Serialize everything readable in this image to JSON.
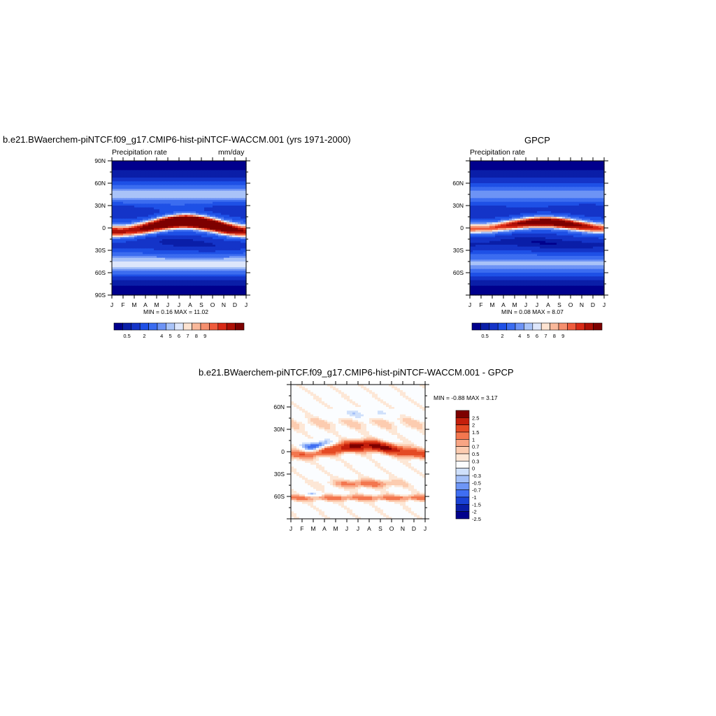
{
  "colors": {
    "precip_scale": [
      "#00008c",
      "#0a1ea8",
      "#1434c8",
      "#1e50e6",
      "#3b6cf0",
      "#6d93f5",
      "#a9c3f8",
      "#dde6fb",
      "#fde3d1",
      "#f9b89a",
      "#f58f6e",
      "#ef5b3c",
      "#d92a16",
      "#ae1006",
      "#7d0000"
    ],
    "diff_scale": [
      "#00008c",
      "#0a1ea8",
      "#1a42d6",
      "#3f6ef2",
      "#6e96f6",
      "#a4c0f8",
      "#cfe0fb",
      "#fbfdff",
      "#fde7d6",
      "#fcccb0",
      "#f8a584",
      "#f3774f",
      "#e44a24",
      "#c41f0c",
      "#7d0000"
    ]
  },
  "charts": {
    "model": {
      "title": "b.e21.BWaerchem-piNTCF.f09_g17.CMIP6-hist-piNTCF-WACCM.001 (yrs 1971-2000)",
      "left_label": "Precipitation rate",
      "right_label": "mm/day",
      "minmax": "MIN =   0.16 MAX =  11.02"
    },
    "obs": {
      "title": "GPCP",
      "left_label": "Precipitation rate",
      "minmax": "MIN =   0.08 MAX =   8.07"
    },
    "diff": {
      "title": "b.e21.BWaerchem-piNTCF.f09_g17.CMIP6-hist-piNTCF-WACCM.001 - GPCP",
      "minmax": "MIN =  -0.88 MAX =   3.17"
    }
  },
  "chart_data": [
    {
      "type": "heatmap",
      "title": "b.e21.BWaerchem-piNTCF.f09_g17.CMIP6-hist-piNTCF-WACCM.001 (yrs 1971-2000)",
      "ylabel": "Precipitation rate",
      "units": "mm/day",
      "x_ticks": [
        "J",
        "F",
        "M",
        "A",
        "M",
        "J",
        "J",
        "A",
        "S",
        "O",
        "N",
        "D",
        "J"
      ],
      "y_ticks": [
        "90N",
        "60N",
        "30N",
        "0",
        "30S",
        "60S",
        "90S"
      ],
      "ylim": [
        -90,
        90
      ],
      "colorbar_labels": [
        "0.5",
        "2",
        "4",
        "5",
        "6",
        "7",
        "8",
        "9"
      ],
      "min": 0.16,
      "max": 11.02,
      "field": {
        "itcz_peak": 10.5,
        "itcz_lat_jan": -5,
        "itcz_lat_aug": 9,
        "itcz_width": 6,
        "storm_track_nh": 3.8,
        "storm_track_sh": 4.2,
        "polar": 0.3,
        "subtropical_min": 1.0
      }
    },
    {
      "type": "heatmap",
      "title": "GPCP",
      "ylabel": "Precipitation rate",
      "x_ticks": [
        "J",
        "F",
        "M",
        "A",
        "M",
        "J",
        "J",
        "A",
        "S",
        "O",
        "N",
        "D",
        "J"
      ],
      "y_ticks": [
        "60N",
        "30N",
        "0",
        "30S",
        "60S"
      ],
      "ylim": [
        -90,
        90
      ],
      "colorbar_labels": [
        "0.5",
        "2",
        "4",
        "5",
        "6",
        "7",
        "8",
        "9"
      ],
      "min": 0.08,
      "max": 8.07,
      "field": {
        "itcz_peak": 7.8,
        "itcz_lat_jan": -1,
        "itcz_lat_aug": 8,
        "itcz_width": 5,
        "storm_track_nh": 3.4,
        "storm_track_sh": 3.6,
        "polar": 0.3,
        "subtropical_min": 1.0
      }
    },
    {
      "type": "heatmap",
      "title": "b.e21.BWaerchem-piNTCF.f09_g17.CMIP6-hist-piNTCF-WACCM.001 - GPCP",
      "x_ticks": [
        "J",
        "F",
        "M",
        "A",
        "M",
        "J",
        "J",
        "A",
        "S",
        "O",
        "N",
        "D",
        "J"
      ],
      "y_ticks": [
        "60N",
        "30N",
        "0",
        "30S",
        "60S"
      ],
      "ylim": [
        -90,
        90
      ],
      "colorbar_labels": [
        "2.5",
        "2",
        "1.5",
        "1",
        "0.7",
        "0.5",
        "0.3",
        "0",
        "-0.3",
        "-0.5",
        "-0.7",
        "-1",
        "-1.5",
        "-2",
        "-2.5"
      ],
      "min": -0.88,
      "max": 3.17
    }
  ]
}
